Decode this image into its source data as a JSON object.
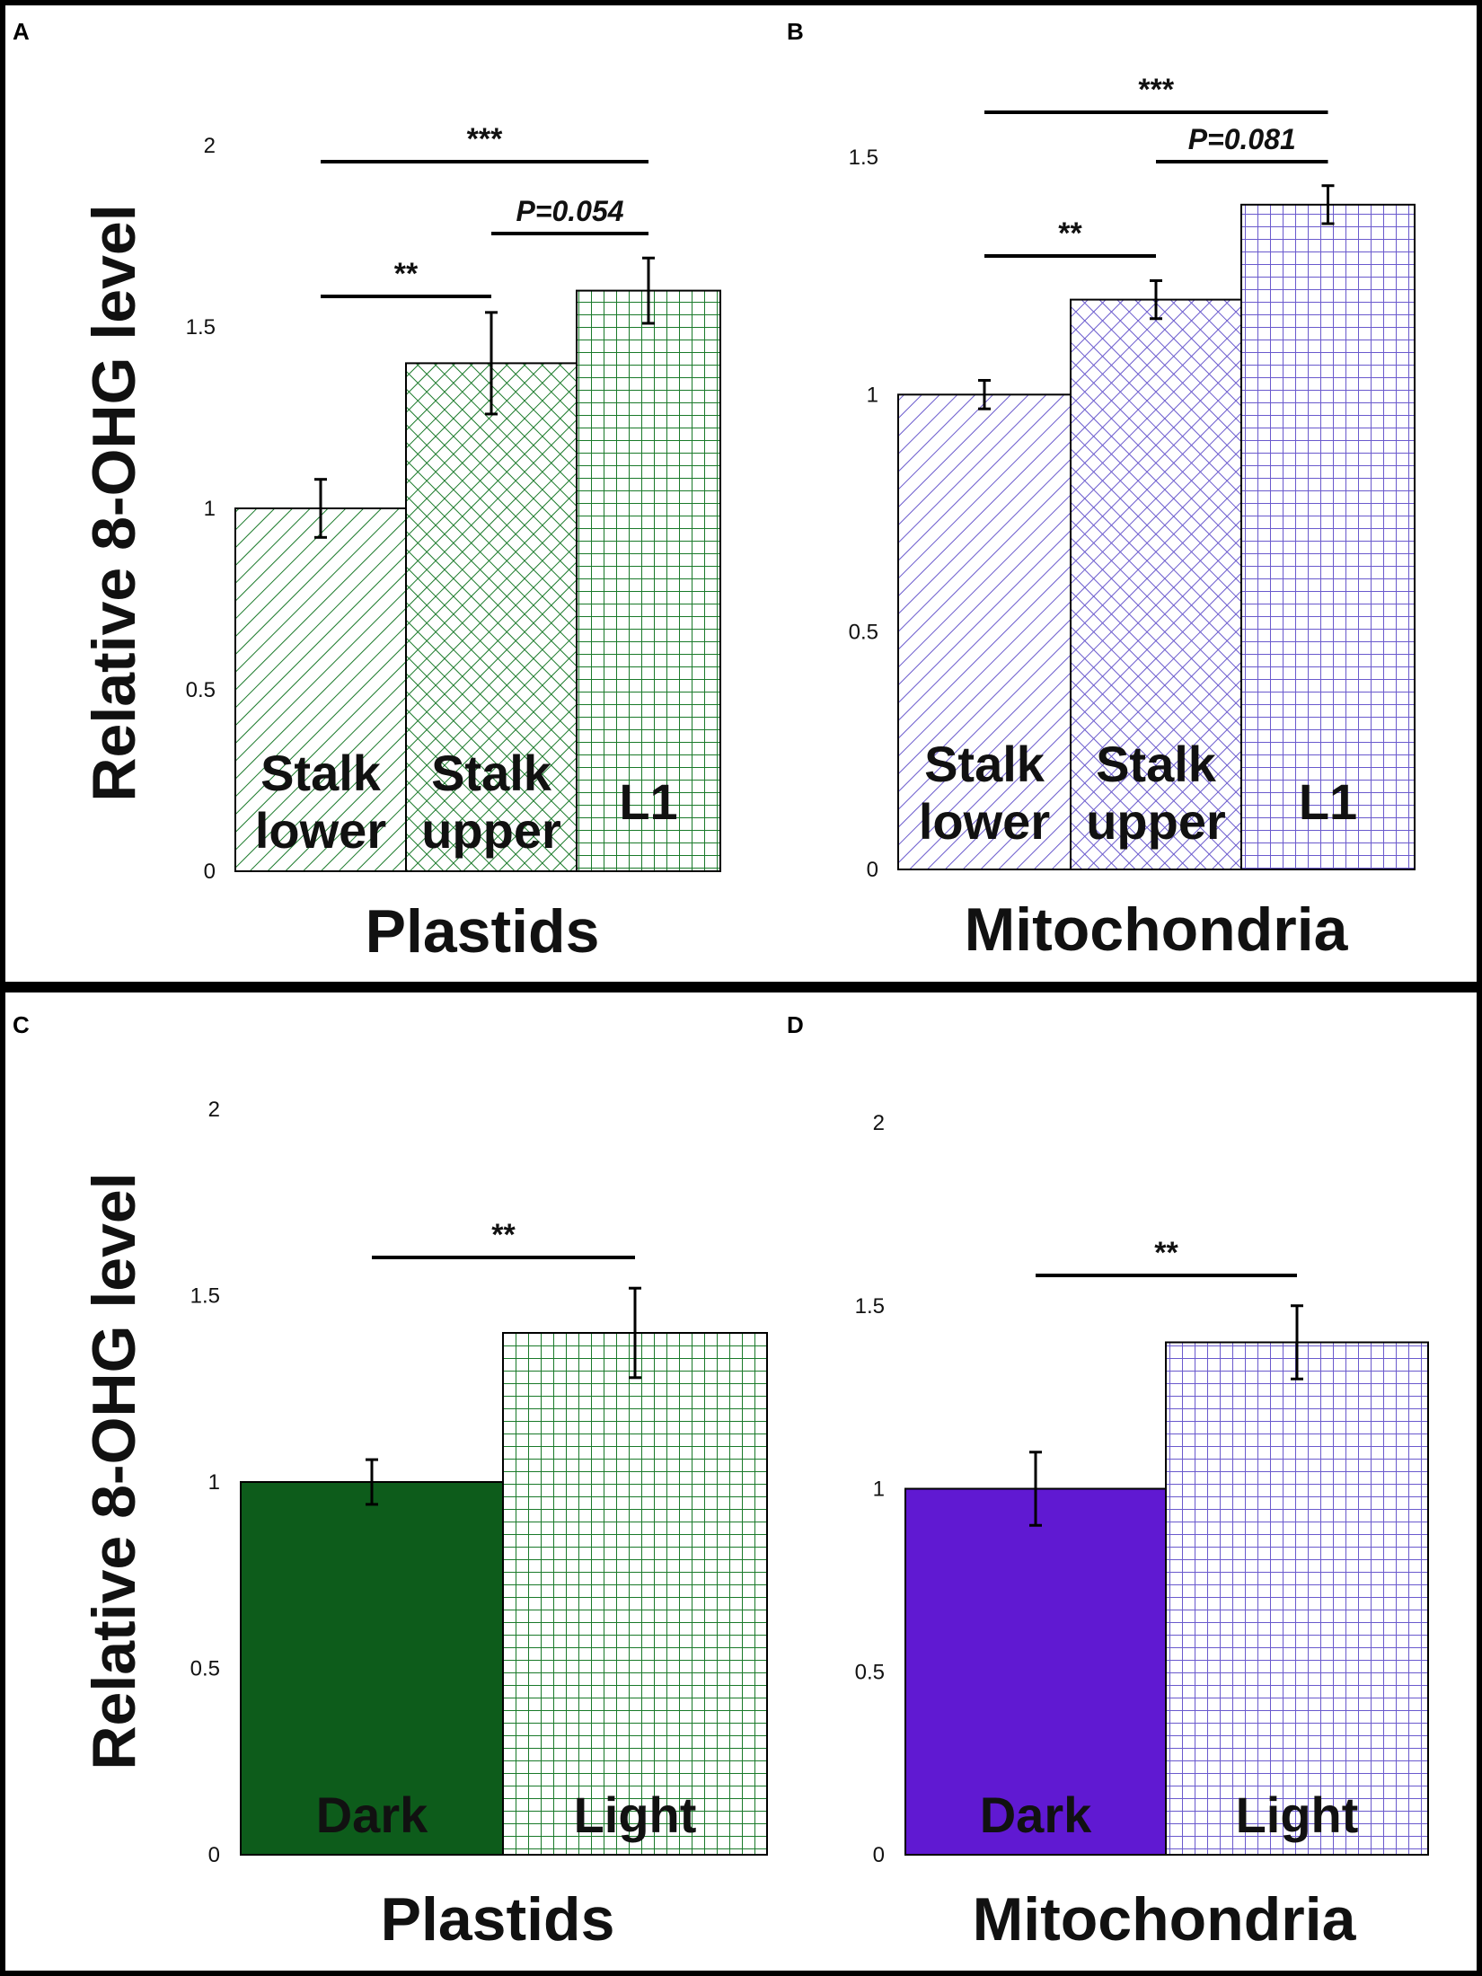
{
  "y_axis_label": "Relative 8-OHG level",
  "colors": {
    "green": "#1a7a2a",
    "green_dark": "#0d5c1b",
    "purple": "#6a5acd",
    "purple_dark": "#6019d2",
    "frame": "#000000"
  },
  "chart_data": [
    {
      "panel": "A",
      "type": "bar",
      "xlabel": "Plastids",
      "ylabel": "Relative 8-OHG level",
      "ylim": [
        0,
        2
      ],
      "ticks": [
        "0",
        "0.5",
        "1",
        "1.5",
        "2"
      ],
      "categories": [
        [
          "Stalk",
          "lower"
        ],
        [
          "Stalk",
          "upper"
        ],
        [
          "L1"
        ]
      ],
      "values": [
        1.0,
        1.4,
        1.6
      ],
      "errors": [
        0.08,
        0.14,
        0.09
      ],
      "fills": [
        "hatch",
        "crosshatch",
        "grid"
      ],
      "color": "green",
      "significance": [
        {
          "from": 0,
          "to": 1,
          "label": "**",
          "italic": false
        },
        {
          "from": 1,
          "to": 2,
          "label": "P=0.054",
          "italic": true
        },
        {
          "from": 0,
          "to": 2,
          "label": "***",
          "italic": false
        }
      ]
    },
    {
      "panel": "B",
      "type": "bar",
      "xlabel": "Mitochondria",
      "ylabel": "",
      "ylim": [
        0,
        1.5
      ],
      "ticks": [
        "0",
        "0.5",
        "1",
        "1.5"
      ],
      "categories": [
        [
          "Stalk",
          "lower"
        ],
        [
          "Stalk",
          "upper"
        ],
        [
          "L1"
        ]
      ],
      "values": [
        1.0,
        1.2,
        1.4
      ],
      "errors": [
        0.03,
        0.04,
        0.04
      ],
      "fills": [
        "hatch",
        "crosshatch",
        "grid"
      ],
      "color": "purple",
      "significance": [
        {
          "from": 0,
          "to": 1,
          "label": "**",
          "italic": false
        },
        {
          "from": 1,
          "to": 2,
          "label": "P=0.081",
          "italic": true
        },
        {
          "from": 0,
          "to": 2,
          "label": "***",
          "italic": false
        }
      ]
    },
    {
      "panel": "C",
      "type": "bar",
      "xlabel": "Plastids",
      "ylabel": "Relative 8-OHG level",
      "ylim": [
        0,
        2
      ],
      "ticks": [
        "0",
        "0.5",
        "1",
        "1.5",
        "2"
      ],
      "categories": [
        [
          "Dark"
        ],
        [
          "Light"
        ]
      ],
      "values": [
        1.0,
        1.4
      ],
      "errors": [
        0.06,
        0.12
      ],
      "fills": [
        "solid",
        "grid"
      ],
      "color": "green",
      "significance": [
        {
          "from": 0,
          "to": 1,
          "label": "**",
          "italic": false
        }
      ]
    },
    {
      "panel": "D",
      "type": "bar",
      "xlabel": "Mitochondria",
      "ylabel": "",
      "ylim": [
        0,
        2
      ],
      "ticks": [
        "0",
        "0.5",
        "1",
        "1.5",
        "2"
      ],
      "categories": [
        [
          "Dark"
        ],
        [
          "Light"
        ]
      ],
      "values": [
        1.0,
        1.4
      ],
      "errors": [
        0.1,
        0.1
      ],
      "fills": [
        "solid",
        "grid"
      ],
      "color": "purple",
      "significance": [
        {
          "from": 0,
          "to": 1,
          "label": "**",
          "italic": false
        }
      ]
    }
  ]
}
